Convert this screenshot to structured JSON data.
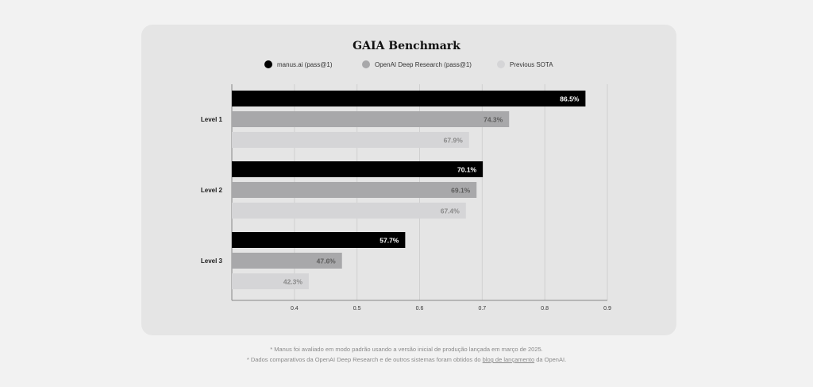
{
  "chart_data": {
    "type": "bar",
    "orientation": "horizontal",
    "title": "GAIA Benchmark",
    "categories": [
      "Level 1",
      "Level 2",
      "Level 3"
    ],
    "series": [
      {
        "name": "manus.ai (pass@1)",
        "values": [
          0.865,
          0.701,
          0.577
        ],
        "labels": [
          "86.5%",
          "70.1%",
          "57.7%"
        ],
        "color": "#000000",
        "label_color": "#ffffff"
      },
      {
        "name": "OpenAI Deep Research (pass@1)",
        "values": [
          0.743,
          0.691,
          0.476
        ],
        "labels": [
          "74.3%",
          "69.1%",
          "47.6%"
        ],
        "color": "#a8a8aa",
        "label_color": "#5c5c5c"
      },
      {
        "name": "Previous SOTA",
        "values": [
          0.679,
          0.674,
          0.423
        ],
        "labels": [
          "67.9%",
          "67.4%",
          "42.3%"
        ],
        "color": "#d5d5d7",
        "label_color": "#8a8a8a"
      }
    ],
    "xlim": [
      0.3,
      0.9
    ],
    "xticks": [
      0.4,
      0.5,
      0.6,
      0.7,
      0.8,
      0.9
    ],
    "xtick_labels": [
      "0.4",
      "0.5",
      "0.6",
      "0.7",
      "0.8",
      "0.9"
    ],
    "grid": true,
    "legend_position": "top"
  },
  "footnotes": {
    "line1": "* Manus foi avaliado em modo padrão usando a versão inicial de produção lançada em março de 2025.",
    "line2_prefix": "* Dados comparativos da OpenAI Deep Research e de outros sistemas foram obtidos do ",
    "line2_link": "blog de lançamento",
    "line2_suffix": " da OpenAI."
  }
}
